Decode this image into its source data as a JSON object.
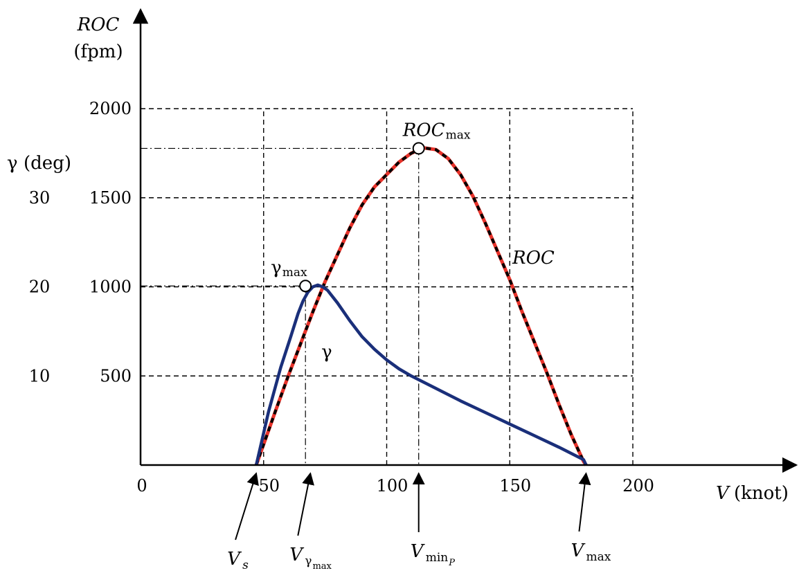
{
  "chart_data": {
    "type": "line",
    "title": "",
    "xlabel": {
      "var": "V",
      "unit": "(knot)"
    },
    "ylabel": {
      "name": "ROC",
      "unit": "(fpm)"
    },
    "y2label": {
      "name": "γ",
      "unit": "(deg)"
    },
    "xlim": [
      0,
      200
    ],
    "ylim": [
      0,
      2000
    ],
    "y2lim": [
      0,
      30
    ],
    "x_ticks": [
      0,
      50,
      100,
      150,
      200
    ],
    "y_ticks": [
      500,
      1000,
      1500,
      2000
    ],
    "y2_ticks": [
      10,
      20,
      30
    ],
    "grid": true,
    "series": [
      {
        "name": "ROC",
        "color": "#e8322a",
        "outline": "#000000",
        "x": [
          47,
          55,
          60,
          65,
          70,
          75,
          80,
          85,
          90,
          95,
          100,
          105,
          110,
          115,
          120,
          125,
          130,
          135,
          140,
          145,
          150,
          155,
          160,
          165,
          170,
          175,
          180,
          181
        ],
        "y": [
          0,
          310,
          500,
          680,
          860,
          1030,
          1180,
          1330,
          1460,
          1560,
          1630,
          1700,
          1750,
          1780,
          1770,
          1720,
          1630,
          1510,
          1360,
          1200,
          1040,
          860,
          690,
          520,
          340,
          170,
          20,
          0
        ]
      },
      {
        "name": "γ",
        "color": "#1a2f7a",
        "x": [
          47,
          52,
          57,
          61,
          64,
          66,
          68,
          70,
          72,
          74,
          76,
          80,
          85,
          90,
          95,
          100,
          105,
          110,
          120,
          130,
          140,
          150,
          160,
          170,
          180,
          181
        ],
        "y": [
          0,
          300,
          550,
          720,
          850,
          920,
          970,
          1000,
          1010,
          1000,
          980,
          910,
          810,
          720,
          650,
          590,
          540,
          500,
          430,
          360,
          295,
          230,
          165,
          100,
          30,
          0
        ]
      }
    ],
    "annotations": [
      {
        "label": "ROC_max",
        "main": "ROC",
        "sub": "max",
        "x": 113,
        "y": 1777
      },
      {
        "label": "γ_max",
        "main": "γ",
        "sub": "max",
        "x": 67,
        "y": 1005
      },
      {
        "label": "ROC",
        "x": 155,
        "y": 1130
      },
      {
        "label": "γ",
        "x": 74,
        "y": 680
      }
    ],
    "velocity_markers": [
      {
        "main": "V",
        "sub": "s",
        "x": 47
      },
      {
        "main": "V",
        "sub": "γ",
        "subsub": "max",
        "x": 69
      },
      {
        "main": "V",
        "sub": "min",
        "subsub": "P",
        "x": 113
      },
      {
        "main": "V",
        "sub": "max",
        "x": 181
      }
    ]
  }
}
